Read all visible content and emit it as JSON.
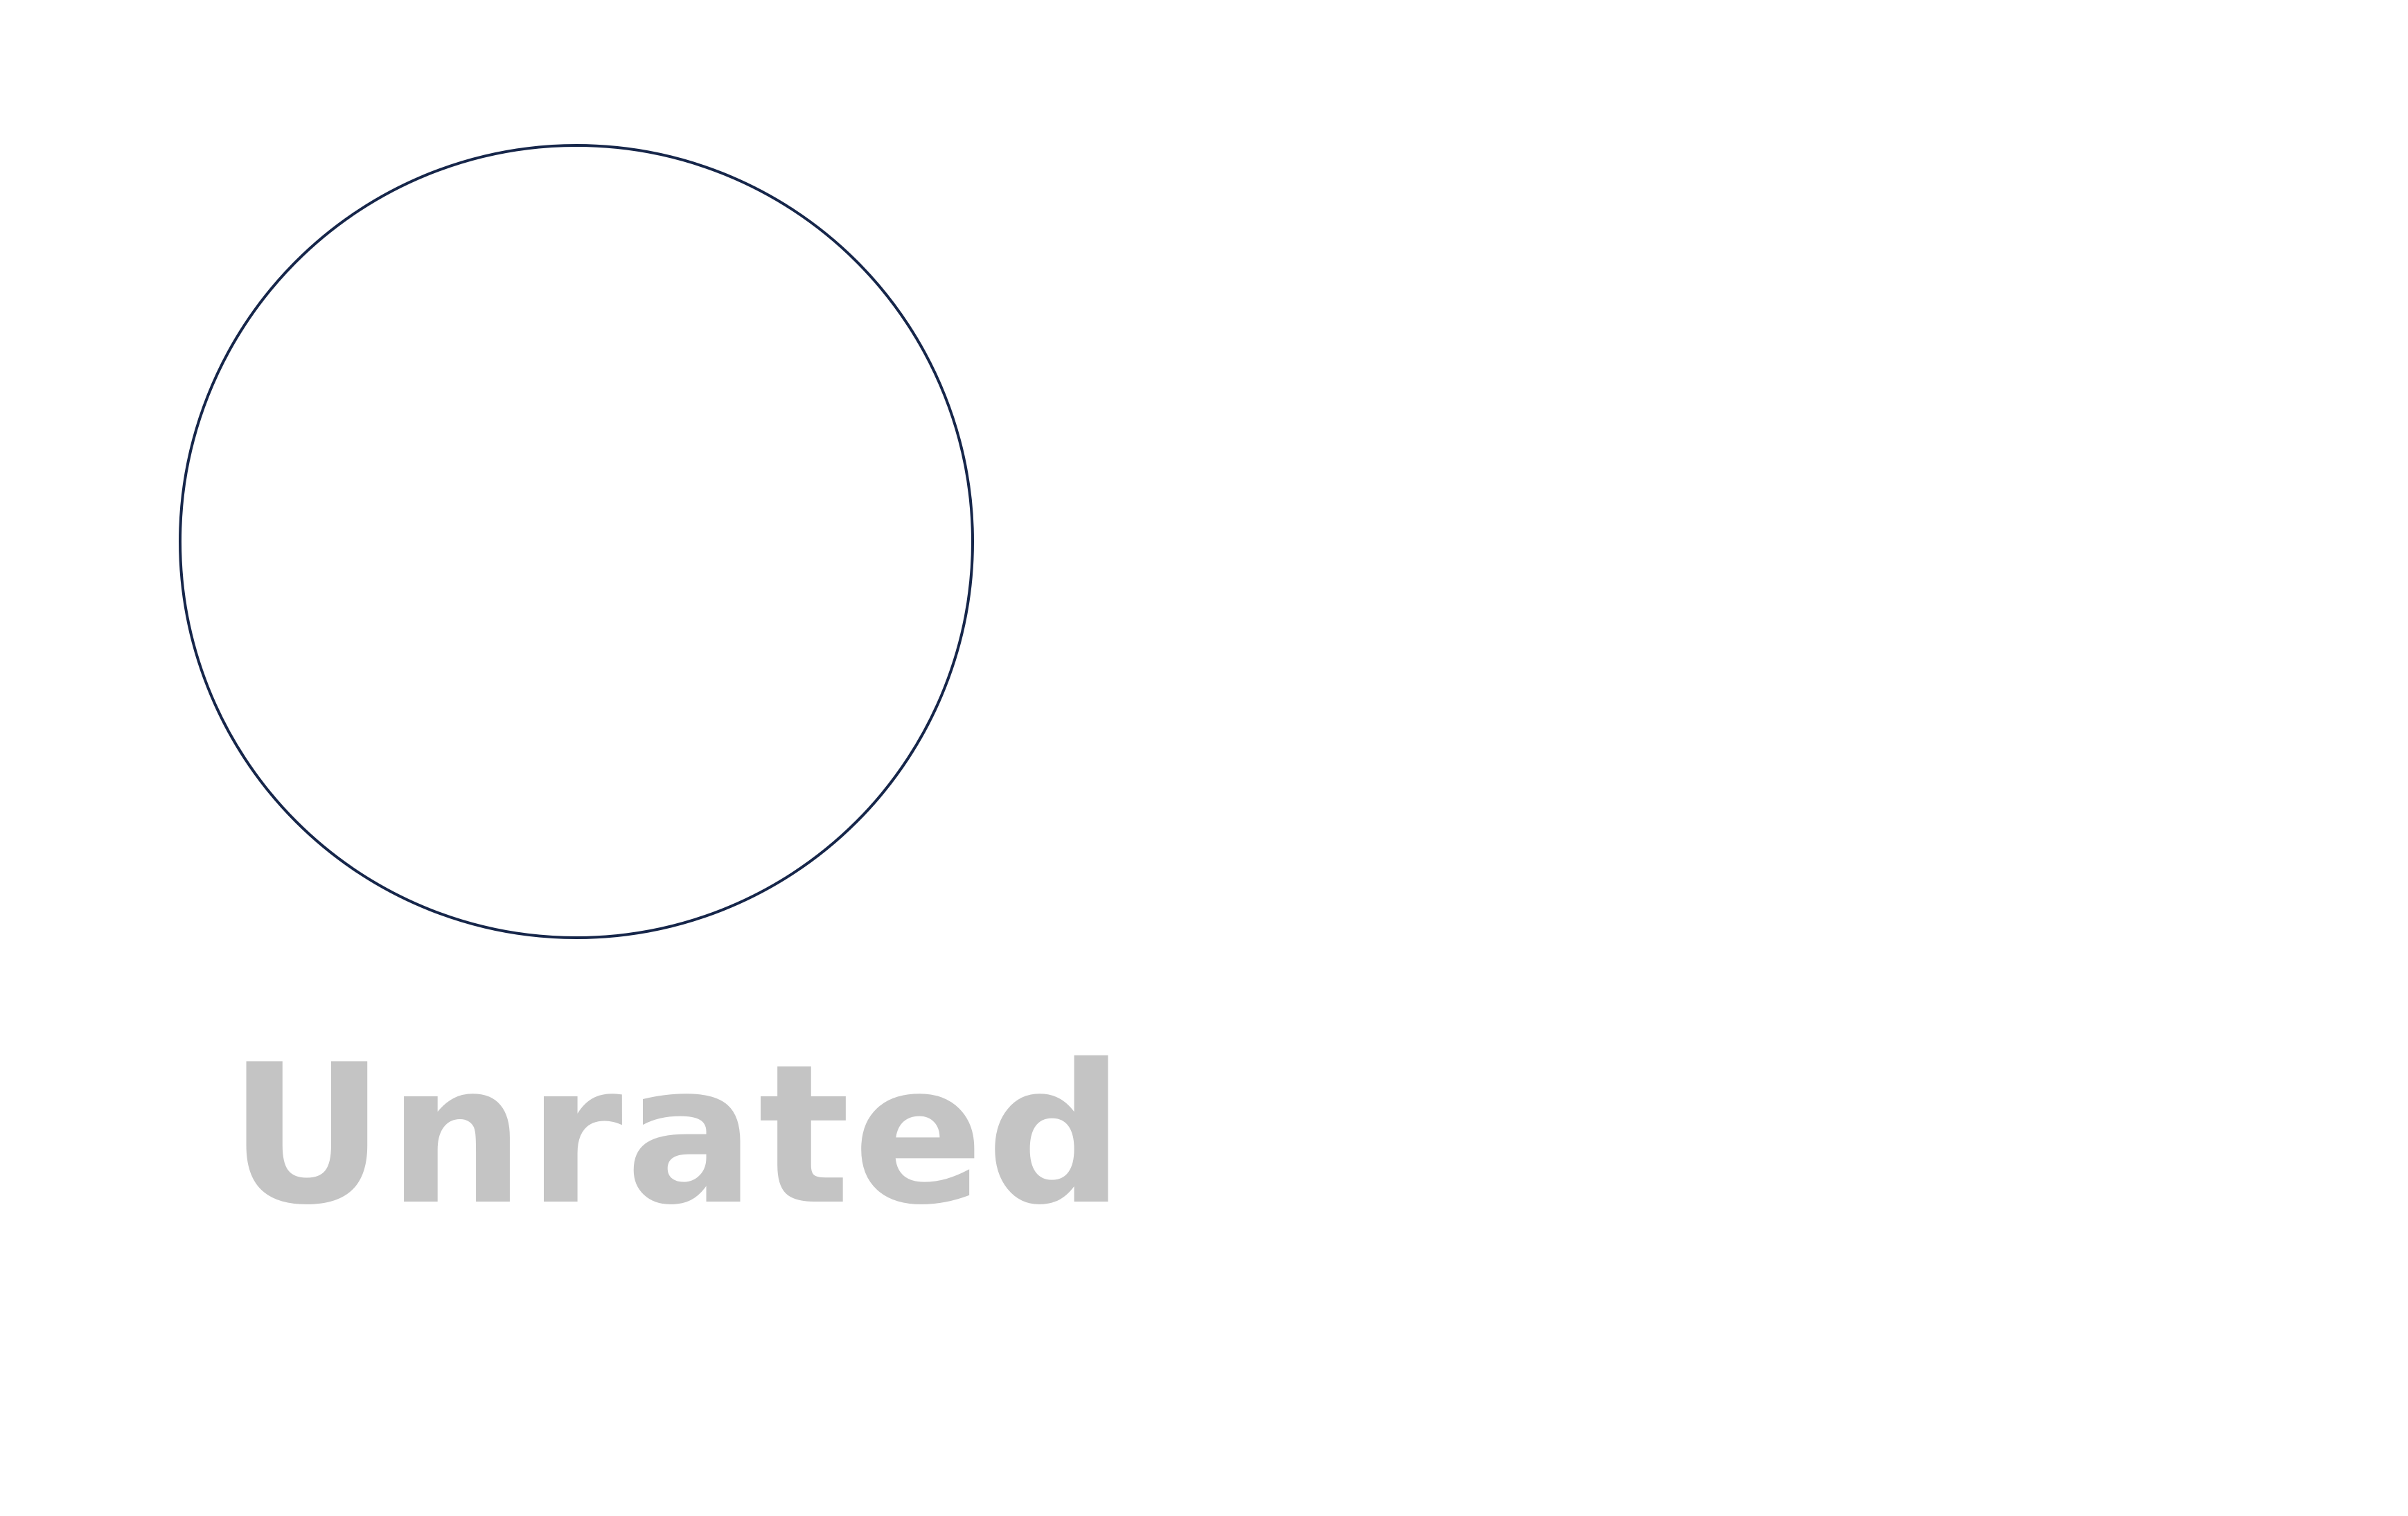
{
  "rating": {
    "label": "Unrated",
    "circle_border_color": "#16264a",
    "label_color": "#c4c4c4",
    "background_color": "#ffffff"
  }
}
